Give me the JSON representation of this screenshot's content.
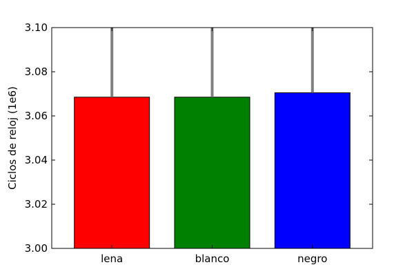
{
  "chart_data": {
    "type": "bar",
    "title": "",
    "xlabel": "",
    "ylabel": "Ciclos de reloj (1e6)",
    "categories": [
      "lena",
      "blanco",
      "negro"
    ],
    "values": [
      3.0685,
      3.0685,
      3.0705
    ],
    "error_upper": [
      3.1,
      3.1,
      3.1
    ],
    "colors": [
      "#ff0000",
      "#008000",
      "#0000ff"
    ],
    "error_bar_color": "#808080",
    "ylim": [
      3.0,
      3.1
    ],
    "yticks": [
      "3.00",
      "3.02",
      "3.04",
      "3.06",
      "3.08",
      "3.10"
    ],
    "grid": false,
    "legend": "none"
  }
}
